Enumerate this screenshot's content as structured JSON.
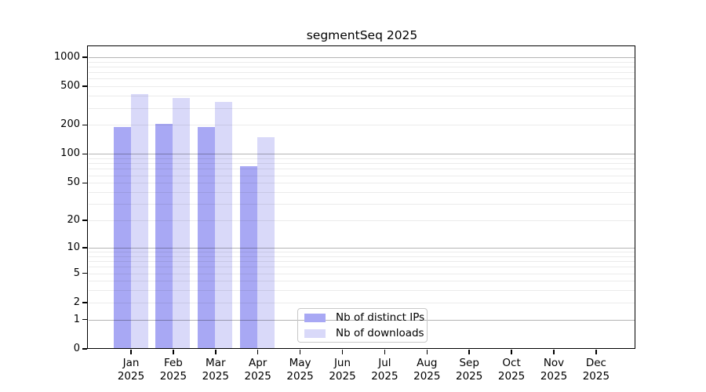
{
  "title": "segmentSeq 2025",
  "chart_data": {
    "type": "bar",
    "title": "segmentSeq 2025",
    "year": "2025",
    "categories": [
      "Jan",
      "Feb",
      "Mar",
      "Apr",
      "May",
      "Jun",
      "Jul",
      "Aug",
      "Sep",
      "Oct",
      "Nov",
      "Dec"
    ],
    "series": [
      {
        "name": "Nb of distinct IPs",
        "color": "#a8a8f4",
        "values": [
          190,
          205,
          190,
          75,
          null,
          null,
          null,
          null,
          null,
          null,
          null,
          null
        ]
      },
      {
        "name": "Nb of downloads",
        "color": "#d9d9f9",
        "values": [
          420,
          380,
          345,
          150,
          null,
          null,
          null,
          null,
          null,
          null,
          null,
          null
        ]
      }
    ],
    "xlabel": "",
    "ylabel": "",
    "scale": "log1p",
    "ylim": [
      0,
      1300
    ],
    "yticks": [
      0,
      1,
      2,
      5,
      10,
      20,
      50,
      100,
      200,
      500,
      1000
    ],
    "gridlines": {
      "major": [
        1,
        10,
        100,
        1000
      ],
      "minor": [
        2,
        3,
        4,
        5,
        6,
        7,
        8,
        9,
        20,
        30,
        40,
        50,
        60,
        70,
        80,
        90,
        200,
        300,
        400,
        500,
        600,
        700,
        800,
        900
      ],
      "major_color": "#b4b4b4",
      "minor_color": "#ebebeb"
    },
    "legend_position": "inside-bottom-center"
  }
}
